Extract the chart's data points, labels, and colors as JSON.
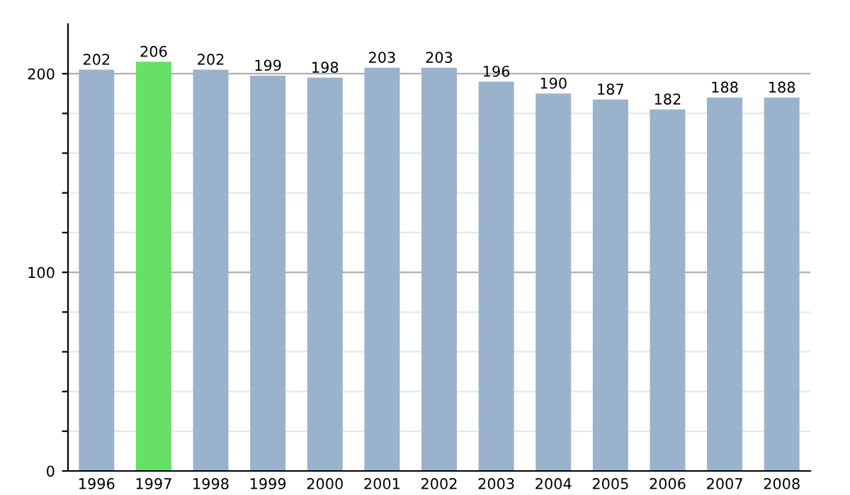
{
  "chart_data": {
    "type": "bar",
    "categories": [
      "1996",
      "1997",
      "1998",
      "1999",
      "2000",
      "2001",
      "2002",
      "2003",
      "2004",
      "2005",
      "2006",
      "2007",
      "2008"
    ],
    "values": [
      202,
      206,
      202,
      199,
      198,
      203,
      203,
      196,
      190,
      187,
      182,
      188,
      188
    ],
    "colors": [
      "#9bb2cc",
      "#66e066",
      "#9bb2cc",
      "#9bb2cc",
      "#9bb2cc",
      "#9bb2cc",
      "#9bb2cc",
      "#9bb2cc",
      "#9bb2cc",
      "#9bb2cc",
      "#9bb2cc",
      "#9bb2cc",
      "#9bb2cc"
    ],
    "ylim": [
      0,
      225
    ],
    "yticks": [
      0,
      {
        "value": 20,
        "label": null
      },
      {
        "value": 40,
        "label": null
      },
      {
        "value": 60,
        "label": null
      },
      {
        "value": 80,
        "label": null
      },
      100,
      {
        "value": 120,
        "label": null
      },
      {
        "value": 140,
        "label": null
      },
      {
        "value": 160,
        "label": null
      },
      {
        "value": 180,
        "label": null
      },
      200
    ],
    "grid": "y",
    "data_labels": true
  }
}
